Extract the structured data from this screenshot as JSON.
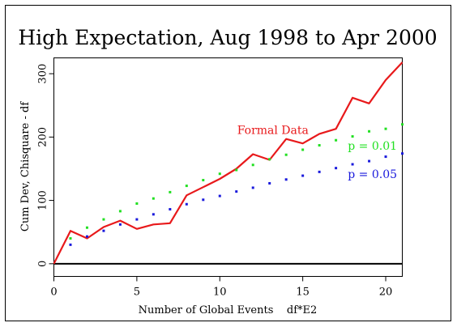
{
  "chart_data": {
    "type": "line",
    "title": "High Expectation, Aug 1998 to Apr 2000",
    "xlabel": "Number of Global Events    df*E2",
    "ylabel": "Cum Dev, Chisquare - df",
    "xlim": [
      0,
      21
    ],
    "ylim": [
      -20,
      325
    ],
    "x_ticks": [
      0,
      5,
      10,
      15,
      20
    ],
    "y_ticks": [
      0,
      100,
      200,
      300
    ],
    "grid": false,
    "reference_line": 0,
    "series": [
      {
        "name": "Formal Data",
        "style": "line",
        "color": "#e8191b",
        "x": [
          0,
          1,
          2,
          3,
          4,
          5,
          6,
          7,
          8,
          9,
          10,
          11,
          12,
          13,
          14,
          15,
          16,
          17,
          18,
          19,
          20,
          21
        ],
        "values": [
          0,
          52,
          40,
          58,
          68,
          55,
          62,
          64,
          108,
          121,
          134,
          150,
          173,
          164,
          197,
          190,
          205,
          213,
          262,
          253,
          290,
          318
        ]
      },
      {
        "name": "p = 0.01",
        "style": "points",
        "color": "#22e022",
        "x": [
          1,
          2,
          3,
          4,
          5,
          6,
          7,
          8,
          9,
          10,
          11,
          12,
          13,
          14,
          15,
          16,
          17,
          18,
          19,
          20,
          21
        ],
        "values": [
          40,
          57,
          70,
          83,
          95,
          103,
          113,
          123,
          132,
          142,
          148,
          156,
          165,
          172,
          180,
          187,
          195,
          201,
          209,
          213,
          220
        ]
      },
      {
        "name": "p = 0.05",
        "style": "points",
        "color": "#1a1adc",
        "x": [
          1,
          2,
          3,
          4,
          5,
          6,
          7,
          8,
          9,
          10,
          11,
          12,
          13,
          14,
          15,
          16,
          17,
          18,
          19,
          20,
          21
        ],
        "values": [
          30,
          43,
          52,
          62,
          70,
          78,
          86,
          94,
          101,
          107,
          114,
          120,
          127,
          133,
          139,
          145,
          151,
          157,
          162,
          169,
          174
        ]
      }
    ],
    "annotations": [
      {
        "text": "Formal Data",
        "color": "#e8191b",
        "x": 13.2,
        "y": 205
      },
      {
        "text": "p = 0.01",
        "color": "#22e022",
        "x": 19.2,
        "y": 180
      },
      {
        "text": "p = 0.05",
        "color": "#1a1adc",
        "x": 19.2,
        "y": 135
      }
    ]
  }
}
